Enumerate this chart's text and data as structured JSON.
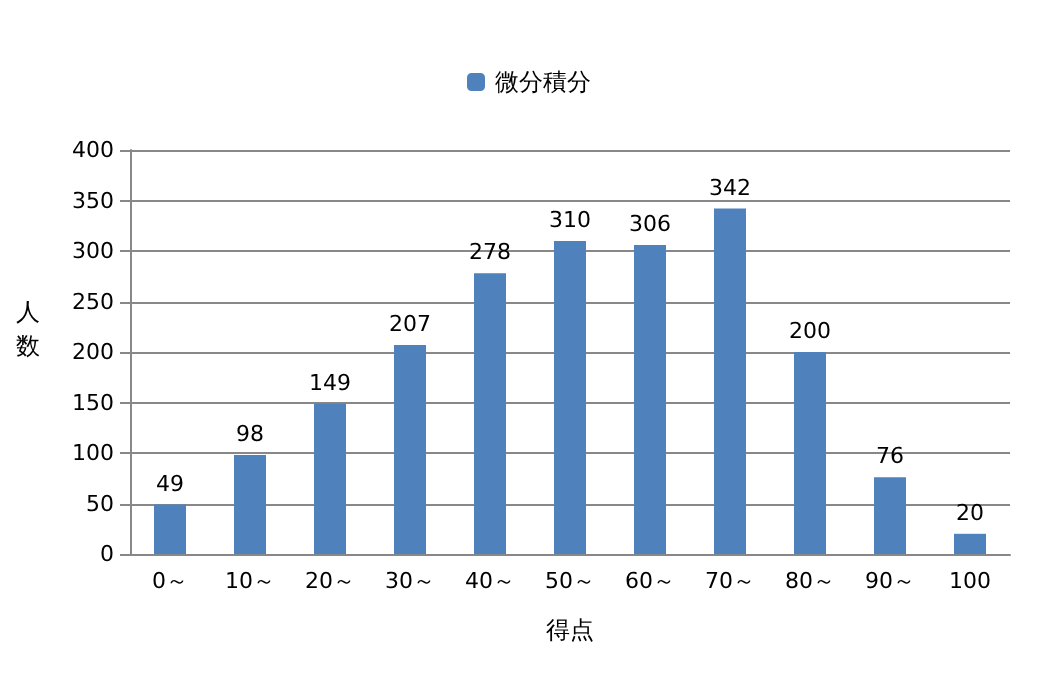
{
  "chart_data": {
    "type": "bar",
    "xlabel": "得点",
    "ylabel": "人数",
    "categories": [
      "0～",
      "10～",
      "20～",
      "30～",
      "40～",
      "50～",
      "60～",
      "70～",
      "80～",
      "90～",
      "100"
    ],
    "series": [
      {
        "name": "微分積分",
        "color": "#4f81bd",
        "values": [
          49,
          98,
          149,
          207,
          278,
          310,
          306,
          342,
          200,
          76,
          20
        ]
      }
    ],
    "ylim": [
      0,
      400
    ],
    "yticks": [
      0,
      50,
      100,
      150,
      200,
      250,
      300,
      350,
      400
    ],
    "grid": "y",
    "legend": "top",
    "data_labels": true
  }
}
